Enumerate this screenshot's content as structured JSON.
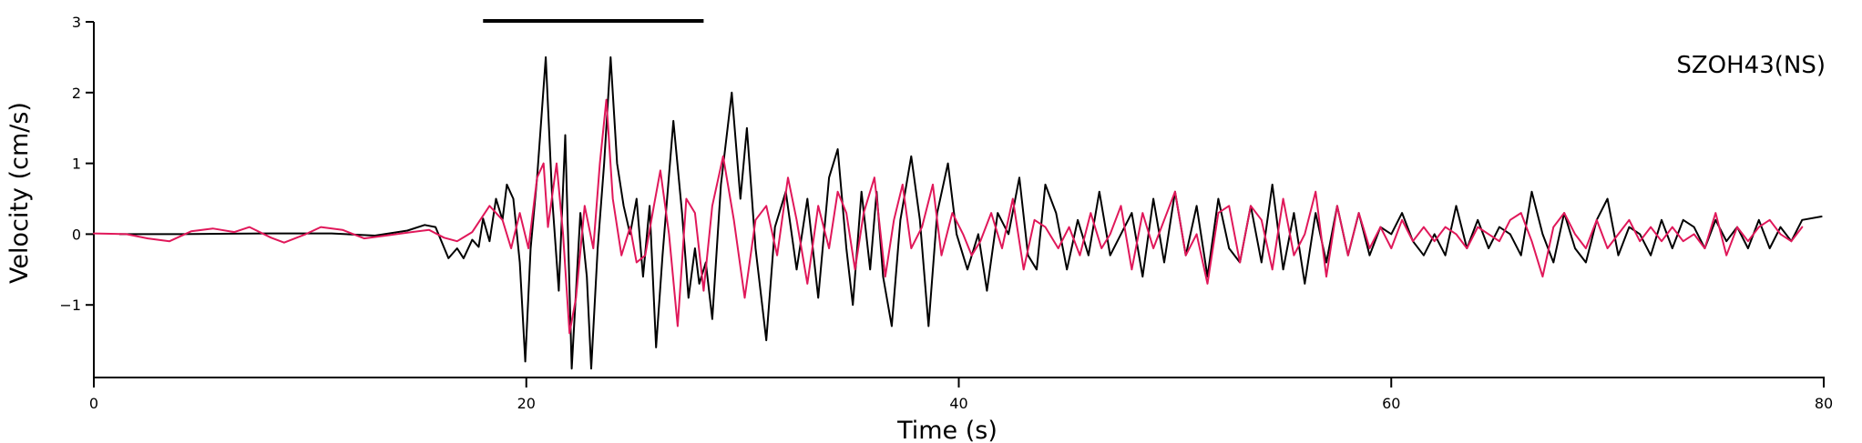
{
  "chart_data": {
    "type": "line",
    "station_label": "SZOH43(NS)",
    "xlabel": "Time (s)",
    "ylabel": "Velocity (cm/s)",
    "xlim": [
      0,
      80
    ],
    "ylim": [
      -2,
      3
    ],
    "xticks": [
      0,
      20,
      40,
      60,
      80
    ],
    "yticks": [
      -1,
      0,
      1,
      2,
      3
    ],
    "marker_bar": {
      "from": 18,
      "to": 28.2,
      "y": 3
    },
    "colors": {
      "series_black": "#000000",
      "series_pink": "#e0185a"
    },
    "series": [
      {
        "color": "#000000",
        "points": [
          [
            1.2,
            0.0
          ],
          [
            4,
            0.0
          ],
          [
            8,
            0.01
          ],
          [
            11,
            0.01
          ],
          [
            13,
            -0.02
          ],
          [
            14.5,
            0.05
          ],
          [
            15.3,
            0.13
          ],
          [
            15.8,
            0.1
          ],
          [
            16.4,
            -0.34
          ],
          [
            16.8,
            -0.2
          ],
          [
            17.1,
            -0.34
          ],
          [
            17.5,
            -0.08
          ],
          [
            17.8,
            -0.18
          ],
          [
            18.0,
            0.22
          ],
          [
            18.3,
            -0.1
          ],
          [
            18.6,
            0.5
          ],
          [
            18.9,
            0.2
          ],
          [
            19.1,
            0.7
          ],
          [
            19.4,
            0.5
          ],
          [
            19.7,
            -0.4
          ],
          [
            19.95,
            -1.8
          ],
          [
            20.2,
            -0.2
          ],
          [
            20.5,
            0.8
          ],
          [
            20.9,
            2.5
          ],
          [
            21.2,
            0.5
          ],
          [
            21.5,
            -0.8
          ],
          [
            21.8,
            1.4
          ],
          [
            22.1,
            -1.9
          ],
          [
            22.5,
            0.3
          ],
          [
            22.8,
            -0.6
          ],
          [
            23.0,
            -1.9
          ],
          [
            23.3,
            -0.2
          ],
          [
            23.6,
            1.0
          ],
          [
            23.9,
            2.5
          ],
          [
            24.2,
            1.0
          ],
          [
            24.5,
            0.4
          ],
          [
            24.8,
            0.0
          ],
          [
            25.1,
            0.5
          ],
          [
            25.4,
            -0.6
          ],
          [
            25.7,
            0.4
          ],
          [
            26.0,
            -1.6
          ],
          [
            26.3,
            -0.3
          ],
          [
            26.8,
            1.6
          ],
          [
            27.2,
            0.3
          ],
          [
            27.5,
            -0.9
          ],
          [
            27.8,
            -0.2
          ],
          [
            28.0,
            -0.7
          ],
          [
            28.3,
            -0.4
          ],
          [
            28.6,
            -1.2
          ],
          [
            29.0,
            0.7
          ],
          [
            29.5,
            2.0
          ],
          [
            29.9,
            0.5
          ],
          [
            30.2,
            1.5
          ],
          [
            30.6,
            -0.2
          ],
          [
            31.1,
            -1.5
          ],
          [
            31.5,
            0.1
          ],
          [
            32.0,
            0.6
          ],
          [
            32.5,
            -0.5
          ],
          [
            33.0,
            0.5
          ],
          [
            33.5,
            -0.9
          ],
          [
            34.0,
            0.8
          ],
          [
            34.4,
            1.2
          ],
          [
            34.8,
            -0.2
          ],
          [
            35.1,
            -1.0
          ],
          [
            35.5,
            0.6
          ],
          [
            35.9,
            -0.5
          ],
          [
            36.2,
            0.6
          ],
          [
            36.5,
            -0.6
          ],
          [
            36.9,
            -1.3
          ],
          [
            37.3,
            0.2
          ],
          [
            37.8,
            1.1
          ],
          [
            38.2,
            0.2
          ],
          [
            38.6,
            -1.3
          ],
          [
            39.0,
            0.3
          ],
          [
            39.5,
            1.0
          ],
          [
            39.9,
            0.0
          ],
          [
            40.4,
            -0.5
          ],
          [
            40.9,
            0.0
          ],
          [
            41.3,
            -0.8
          ],
          [
            41.8,
            0.3
          ],
          [
            42.3,
            0.0
          ],
          [
            42.8,
            0.8
          ],
          [
            43.2,
            -0.3
          ],
          [
            43.6,
            -0.5
          ],
          [
            44.0,
            0.7
          ],
          [
            44.5,
            0.3
          ],
          [
            45.0,
            -0.5
          ],
          [
            45.5,
            0.2
          ],
          [
            46.0,
            -0.3
          ],
          [
            46.5,
            0.6
          ],
          [
            47.0,
            -0.3
          ],
          [
            47.5,
            0.0
          ],
          [
            48.0,
            0.3
          ],
          [
            48.5,
            -0.6
          ],
          [
            49.0,
            0.5
          ],
          [
            49.5,
            -0.4
          ],
          [
            50.0,
            0.6
          ],
          [
            50.5,
            -0.3
          ],
          [
            51.0,
            0.4
          ],
          [
            51.5,
            -0.6
          ],
          [
            52.0,
            0.5
          ],
          [
            52.5,
            -0.2
          ],
          [
            53.0,
            -0.4
          ],
          [
            53.5,
            0.4
          ],
          [
            54.0,
            -0.4
          ],
          [
            54.5,
            0.7
          ],
          [
            55.0,
            -0.5
          ],
          [
            55.5,
            0.3
          ],
          [
            56.0,
            -0.7
          ],
          [
            56.5,
            0.3
          ],
          [
            57.0,
            -0.4
          ],
          [
            57.5,
            0.4
          ],
          [
            58.0,
            -0.3
          ],
          [
            58.5,
            0.3
          ],
          [
            59.0,
            -0.3
          ],
          [
            59.5,
            0.1
          ],
          [
            60.0,
            0.0
          ],
          [
            60.5,
            0.3
          ],
          [
            61.0,
            -0.1
          ],
          [
            61.5,
            -0.3
          ],
          [
            62.0,
            0.0
          ],
          [
            62.5,
            -0.3
          ],
          [
            63.0,
            0.4
          ],
          [
            63.5,
            -0.2
          ],
          [
            64.0,
            0.2
          ],
          [
            64.5,
            -0.2
          ],
          [
            65.0,
            0.1
          ],
          [
            65.5,
            0.0
          ],
          [
            66.0,
            -0.3
          ],
          [
            66.5,
            0.6
          ],
          [
            67.0,
            0.0
          ],
          [
            67.5,
            -0.4
          ],
          [
            68.0,
            0.3
          ],
          [
            68.5,
            -0.2
          ],
          [
            69.0,
            -0.4
          ],
          [
            69.5,
            0.2
          ],
          [
            70.0,
            0.5
          ],
          [
            70.5,
            -0.3
          ],
          [
            71.0,
            0.1
          ],
          [
            71.5,
            0.0
          ],
          [
            72.0,
            -0.3
          ],
          [
            72.5,
            0.2
          ],
          [
            73.0,
            -0.2
          ],
          [
            73.5,
            0.2
          ],
          [
            74.0,
            0.1
          ],
          [
            74.5,
            -0.2
          ],
          [
            75.0,
            0.2
          ],
          [
            75.5,
            -0.1
          ],
          [
            76.0,
            0.1
          ],
          [
            76.5,
            -0.2
          ],
          [
            77.0,
            0.2
          ],
          [
            77.5,
            -0.2
          ],
          [
            78.0,
            0.1
          ],
          [
            78.5,
            -0.1
          ],
          [
            79.0,
            0.2
          ],
          [
            79.9,
            0.25
          ]
        ]
      },
      {
        "color": "#e0185a",
        "points": [
          [
            0.0,
            0.01
          ],
          [
            1.5,
            0.0
          ],
          [
            2.5,
            -0.06
          ],
          [
            3.5,
            -0.1
          ],
          [
            4.5,
            0.04
          ],
          [
            5.5,
            0.08
          ],
          [
            6.5,
            0.03
          ],
          [
            7.2,
            0.1
          ],
          [
            8.2,
            -0.05
          ],
          [
            8.8,
            -0.12
          ],
          [
            9.8,
            0.0
          ],
          [
            10.5,
            0.1
          ],
          [
            11.5,
            0.06
          ],
          [
            12.5,
            -0.06
          ],
          [
            13.5,
            -0.02
          ],
          [
            14.5,
            0.02
          ],
          [
            15.5,
            0.06
          ],
          [
            16.2,
            -0.05
          ],
          [
            16.8,
            -0.1
          ],
          [
            17.5,
            0.03
          ],
          [
            18.3,
            0.4
          ],
          [
            18.9,
            0.2
          ],
          [
            19.3,
            -0.2
          ],
          [
            19.7,
            0.3
          ],
          [
            20.1,
            -0.2
          ],
          [
            20.5,
            0.8
          ],
          [
            20.8,
            1.0
          ],
          [
            21.0,
            0.1
          ],
          [
            21.4,
            1.0
          ],
          [
            21.7,
            0.0
          ],
          [
            22.0,
            -1.4
          ],
          [
            22.3,
            -0.9
          ],
          [
            22.7,
            0.4
          ],
          [
            23.1,
            -0.2
          ],
          [
            23.4,
            1.0
          ],
          [
            23.7,
            1.9
          ],
          [
            24.0,
            0.5
          ],
          [
            24.4,
            -0.3
          ],
          [
            24.8,
            0.1
          ],
          [
            25.1,
            -0.4
          ],
          [
            25.5,
            -0.3
          ],
          [
            25.9,
            0.4
          ],
          [
            26.2,
            0.9
          ],
          [
            26.6,
            0.0
          ],
          [
            27.0,
            -1.3
          ],
          [
            27.4,
            0.5
          ],
          [
            27.8,
            0.3
          ],
          [
            28.2,
            -0.8
          ],
          [
            28.6,
            0.4
          ],
          [
            29.1,
            1.1
          ],
          [
            29.6,
            0.2
          ],
          [
            30.1,
            -0.9
          ],
          [
            30.6,
            0.2
          ],
          [
            31.1,
            0.4
          ],
          [
            31.6,
            -0.3
          ],
          [
            32.1,
            0.8
          ],
          [
            32.5,
            0.2
          ],
          [
            33.0,
            -0.7
          ],
          [
            33.5,
            0.4
          ],
          [
            34.0,
            -0.2
          ],
          [
            34.4,
            0.6
          ],
          [
            34.8,
            0.3
          ],
          [
            35.2,
            -0.5
          ],
          [
            35.6,
            0.3
          ],
          [
            36.1,
            0.8
          ],
          [
            36.6,
            -0.6
          ],
          [
            37.0,
            0.2
          ],
          [
            37.4,
            0.7
          ],
          [
            37.8,
            -0.2
          ],
          [
            38.3,
            0.1
          ],
          [
            38.8,
            0.7
          ],
          [
            39.2,
            -0.3
          ],
          [
            39.7,
            0.3
          ],
          [
            40.2,
            0.0
          ],
          [
            40.6,
            -0.3
          ],
          [
            41.0,
            -0.1
          ],
          [
            41.5,
            0.3
          ],
          [
            42.0,
            -0.2
          ],
          [
            42.5,
            0.5
          ],
          [
            43.0,
            -0.5
          ],
          [
            43.5,
            0.2
          ],
          [
            44.0,
            0.1
          ],
          [
            44.6,
            -0.2
          ],
          [
            45.1,
            0.1
          ],
          [
            45.6,
            -0.3
          ],
          [
            46.1,
            0.3
          ],
          [
            46.6,
            -0.2
          ],
          [
            47.0,
            0.0
          ],
          [
            47.5,
            0.4
          ],
          [
            48.0,
            -0.5
          ],
          [
            48.5,
            0.3
          ],
          [
            49.0,
            -0.2
          ],
          [
            49.5,
            0.2
          ],
          [
            50.0,
            0.6
          ],
          [
            50.5,
            -0.3
          ],
          [
            51.0,
            0.0
          ],
          [
            51.5,
            -0.7
          ],
          [
            52.0,
            0.3
          ],
          [
            52.5,
            0.4
          ],
          [
            53.0,
            -0.4
          ],
          [
            53.5,
            0.4
          ],
          [
            54.0,
            0.2
          ],
          [
            54.5,
            -0.5
          ],
          [
            55.0,
            0.5
          ],
          [
            55.5,
            -0.3
          ],
          [
            56.0,
            0.0
          ],
          [
            56.5,
            0.6
          ],
          [
            57.0,
            -0.6
          ],
          [
            57.5,
            0.4
          ],
          [
            58.0,
            -0.3
          ],
          [
            58.5,
            0.3
          ],
          [
            59.0,
            -0.2
          ],
          [
            59.5,
            0.1
          ],
          [
            60.0,
            -0.2
          ],
          [
            60.5,
            0.2
          ],
          [
            61.0,
            -0.1
          ],
          [
            61.5,
            0.1
          ],
          [
            62.0,
            -0.1
          ],
          [
            62.5,
            0.1
          ],
          [
            63.0,
            0.0
          ],
          [
            63.5,
            -0.2
          ],
          [
            64.0,
            0.1
          ],
          [
            64.5,
            0.0
          ],
          [
            65.0,
            -0.1
          ],
          [
            65.5,
            0.2
          ],
          [
            66.0,
            0.3
          ],
          [
            66.5,
            -0.1
          ],
          [
            67.0,
            -0.6
          ],
          [
            67.5,
            0.1
          ],
          [
            68.0,
            0.3
          ],
          [
            68.5,
            0.0
          ],
          [
            69.0,
            -0.2
          ],
          [
            69.5,
            0.2
          ],
          [
            70.0,
            -0.2
          ],
          [
            70.5,
            0.0
          ],
          [
            71.0,
            0.2
          ],
          [
            71.5,
            -0.1
          ],
          [
            72.0,
            0.1
          ],
          [
            72.5,
            -0.1
          ],
          [
            73.0,
            0.1
          ],
          [
            73.5,
            -0.1
          ],
          [
            74.0,
            0.0
          ],
          [
            74.5,
            -0.2
          ],
          [
            75.0,
            0.3
          ],
          [
            75.5,
            -0.3
          ],
          [
            76.0,
            0.1
          ],
          [
            76.5,
            -0.1
          ],
          [
            77.0,
            0.1
          ],
          [
            77.5,
            0.2
          ],
          [
            78.0,
            0.0
          ],
          [
            78.5,
            -0.1
          ],
          [
            79.0,
            0.1
          ]
        ]
      }
    ]
  }
}
